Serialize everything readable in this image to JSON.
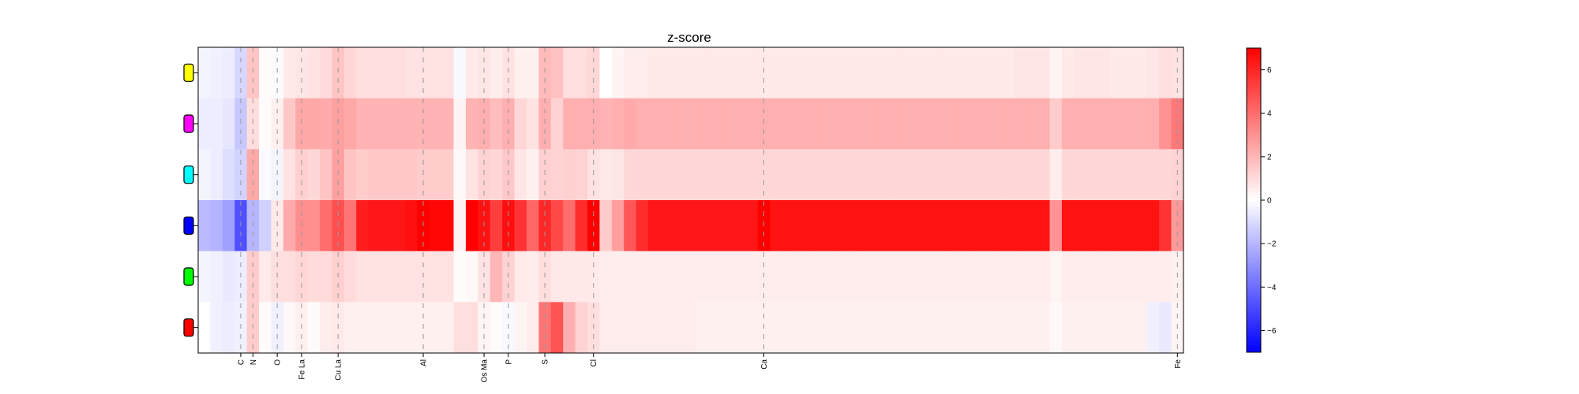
{
  "chart_data": {
    "type": "heatmap",
    "title": "z-score",
    "xlabel": "",
    "ylabel": "",
    "grid": false,
    "columns": 81,
    "labeled_columns": [
      {
        "label": "C",
        "col": 3
      },
      {
        "label": "N",
        "col": 4
      },
      {
        "label": "O",
        "col": 6
      },
      {
        "label": "Fe La",
        "col": 8
      },
      {
        "label": "Cu La",
        "col": 11
      },
      {
        "label": "Al",
        "col": 18
      },
      {
        "label": "Os Ma",
        "col": 23
      },
      {
        "label": "P",
        "col": 25
      },
      {
        "label": "S",
        "col": 28
      },
      {
        "label": "Cl",
        "col": 32
      },
      {
        "label": "Ca",
        "col": 46
      },
      {
        "label": "Fe",
        "col": 80
      }
    ],
    "rows": [
      {
        "color": "#ffff00",
        "values": [
          -0.3,
          -0.4,
          -0.5,
          -1.1,
          1.6,
          0.1,
          -0.1,
          0.6,
          0.7,
          0.8,
          1.0,
          1.6,
          1.1,
          0.9,
          0.9,
          0.9,
          0.9,
          0.8,
          0.8,
          0.8,
          0.8,
          -0.2,
          0.6,
          0.7,
          0.5,
          0.8,
          0.4,
          0.4,
          1.9,
          1.7,
          0.9,
          0.9,
          1.1,
          0.0,
          0.3,
          0.5,
          0.5,
          0.6,
          0.6,
          0.6,
          0.6,
          0.6,
          0.6,
          0.6,
          0.6,
          0.6,
          0.6,
          0.6,
          0.6,
          0.6,
          0.6,
          0.6,
          0.6,
          0.6,
          0.6,
          0.6,
          0.6,
          0.6,
          0.6,
          0.6,
          0.6,
          0.6,
          0.6,
          0.6,
          0.6,
          0.6,
          0.6,
          0.7,
          0.7,
          0.7,
          0.3,
          0.6,
          0.7,
          0.7,
          0.7,
          0.6,
          0.6,
          0.6,
          0.7,
          0.9,
          0.8
        ]
      },
      {
        "color": "#ff00ff",
        "values": [
          -0.5,
          -0.5,
          -0.7,
          -1.5,
          0.9,
          0.1,
          0.4,
          1.5,
          2.4,
          2.4,
          2.3,
          2.6,
          2.4,
          2.1,
          2.1,
          2.1,
          2.1,
          2.1,
          2.1,
          2.1,
          2.1,
          0.3,
          2.1,
          2.2,
          1.8,
          2.2,
          1.1,
          0.8,
          2.2,
          1.2,
          2.2,
          2.2,
          2.2,
          2.1,
          2.2,
          2.3,
          2.2,
          2.2,
          2.2,
          2.2,
          2.2,
          2.2,
          2.2,
          2.2,
          2.2,
          2.2,
          2.2,
          2.2,
          2.2,
          2.2,
          2.2,
          2.2,
          2.2,
          2.2,
          2.2,
          2.2,
          2.2,
          2.2,
          2.2,
          2.2,
          2.2,
          2.2,
          2.2,
          2.2,
          2.2,
          2.2,
          2.2,
          2.2,
          2.2,
          2.2,
          1.4,
          2.2,
          2.2,
          2.2,
          2.2,
          2.2,
          2.2,
          2.2,
          2.2,
          3.0,
          3.7
        ]
      },
      {
        "color": "#00ffff",
        "values": [
          -0.3,
          -0.5,
          -0.9,
          -1.2,
          2.4,
          -0.1,
          -0.3,
          0.8,
          1.3,
          1.1,
          1.6,
          2.6,
          1.6,
          1.4,
          1.5,
          1.5,
          1.5,
          1.5,
          1.4,
          1.4,
          1.4,
          0.2,
          0.8,
          1.2,
          1.1,
          1.5,
          0.7,
          0.4,
          1.3,
          1.2,
          1.3,
          1.2,
          0.8,
          0.6,
          0.7,
          1.1,
          1.1,
          1.1,
          1.1,
          1.1,
          1.1,
          1.1,
          1.1,
          1.1,
          1.1,
          1.1,
          1.1,
          1.1,
          1.1,
          1.1,
          1.1,
          1.1,
          1.1,
          1.1,
          1.1,
          1.1,
          1.1,
          1.1,
          1.1,
          1.1,
          1.1,
          1.1,
          1.1,
          1.1,
          1.1,
          1.1,
          1.1,
          1.1,
          1.1,
          1.1,
          0.5,
          1.1,
          1.1,
          1.1,
          1.1,
          1.1,
          1.1,
          1.1,
          1.1,
          1.1,
          1.2
        ]
      },
      {
        "color": "#0000ff",
        "values": [
          -1.9,
          -2.1,
          -2.6,
          -4.8,
          -2.0,
          -1.3,
          0.6,
          2.3,
          3.1,
          3.1,
          4.0,
          4.8,
          3.8,
          6.2,
          6.4,
          6.4,
          6.4,
          6.6,
          7.0,
          6.8,
          6.8,
          0.3,
          7.0,
          6.5,
          5.3,
          6.6,
          5.6,
          4.2,
          5.9,
          5.0,
          4.0,
          5.8,
          7.0,
          1.4,
          2.6,
          4.6,
          5.8,
          6.4,
          6.4,
          6.4,
          6.4,
          6.4,
          6.4,
          6.4,
          6.4,
          6.4,
          7.0,
          6.5,
          6.5,
          6.5,
          6.5,
          6.5,
          6.5,
          6.5,
          6.5,
          6.5,
          6.5,
          6.5,
          6.5,
          6.5,
          6.5,
          6.5,
          6.5,
          6.5,
          6.5,
          6.5,
          6.5,
          6.5,
          6.5,
          6.5,
          3.0,
          6.5,
          6.5,
          6.5,
          6.5,
          6.5,
          6.5,
          6.5,
          6.5,
          5.6,
          2.8
        ]
      },
      {
        "color": "#00ff00",
        "values": [
          -0.3,
          -0.4,
          -0.6,
          -0.5,
          1.4,
          0.6,
          0.9,
          0.9,
          1.1,
          1.0,
          1.0,
          1.3,
          1.0,
          0.8,
          0.8,
          0.8,
          0.8,
          0.8,
          0.8,
          0.8,
          0.8,
          0.1,
          0.2,
          0.8,
          2.0,
          1.2,
          0.6,
          0.5,
          0.9,
          0.6,
          0.6,
          0.6,
          0.6,
          0.5,
          0.5,
          0.5,
          0.5,
          0.5,
          0.5,
          0.5,
          0.5,
          0.5,
          0.5,
          0.5,
          0.5,
          0.5,
          0.5,
          0.5,
          0.5,
          0.5,
          0.5,
          0.5,
          0.5,
          0.5,
          0.5,
          0.5,
          0.5,
          0.5,
          0.5,
          0.5,
          0.5,
          0.5,
          0.5,
          0.5,
          0.5,
          0.5,
          0.5,
          0.5,
          0.5,
          0.5,
          0.3,
          0.5,
          0.5,
          0.5,
          0.5,
          0.5,
          0.5,
          0.5,
          0.5,
          0.5,
          0.4
        ]
      },
      {
        "color": "#ff0000",
        "values": [
          0.0,
          -0.4,
          -0.5,
          -0.4,
          1.4,
          0.1,
          -0.4,
          0.2,
          0.4,
          0.1,
          0.5,
          0.6,
          0.4,
          0.4,
          0.4,
          0.4,
          0.4,
          0.4,
          0.4,
          0.4,
          0.4,
          0.9,
          0.9,
          0.3,
          0.1,
          -0.2,
          0.3,
          0.5,
          3.8,
          4.7,
          2.2,
          1.2,
          0.9,
          0.5,
          0.5,
          0.5,
          0.5,
          0.5,
          0.5,
          0.5,
          0.5,
          0.4,
          0.4,
          0.4,
          0.4,
          0.4,
          0.4,
          0.4,
          0.4,
          0.4,
          0.4,
          0.4,
          0.4,
          0.4,
          0.4,
          0.4,
          0.4,
          0.4,
          0.4,
          0.4,
          0.4,
          0.4,
          0.4,
          0.4,
          0.4,
          0.4,
          0.4,
          0.4,
          0.4,
          0.4,
          0.2,
          0.4,
          0.4,
          0.4,
          0.4,
          0.4,
          0.4,
          0.4,
          -0.4,
          -0.6,
          0.3
        ]
      }
    ],
    "colorbar": {
      "min": -7,
      "max": 7,
      "ticks": [
        "6",
        "4",
        "2",
        "0",
        "−2",
        "−4",
        "−6"
      ],
      "tick_values": [
        6,
        4,
        2,
        0,
        -2,
        -4,
        -6
      ],
      "colors": {
        "low": "#0000ff",
        "mid": "#ffffff",
        "high": "#ff0000"
      }
    }
  }
}
